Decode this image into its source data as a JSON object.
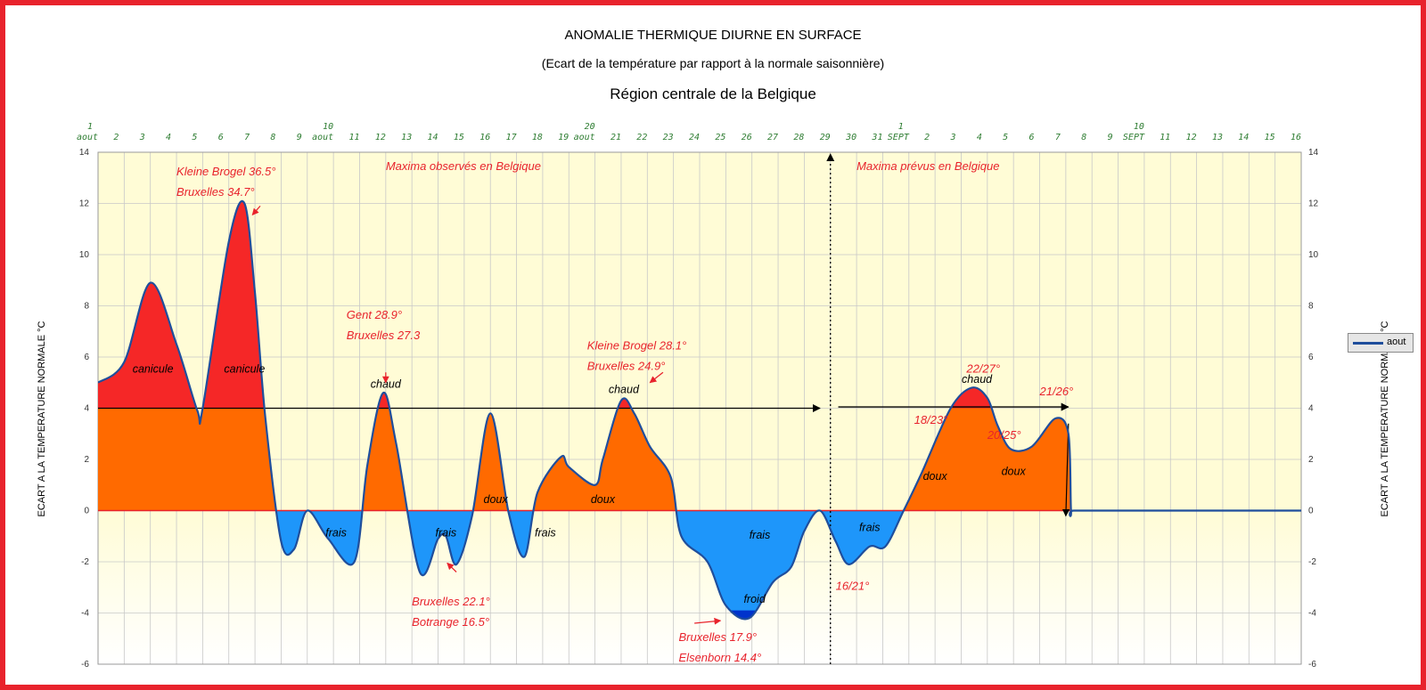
{
  "title": "ANOMALIE THERMIQUE DIURNE EN SURFACE",
  "subtitle": "(Ecart de la température par rapport à la normale saisonnière)",
  "region": "Région centrale de la Belgique",
  "colors": {
    "frame": "#e8232c",
    "background_positive": "#fffcd6",
    "background_negative": "#fffee6",
    "warm_fill": "#ff6a00",
    "heat_fill": "#f52727",
    "cool_fill": "#1e96fa",
    "cold_fill": "#0033cc",
    "curve": "#1f4e9c",
    "annotation": "#e8232c",
    "tick_label": "#2e7d32"
  },
  "chart_data": {
    "type": "area",
    "ylabel": "ECART A LA TEMPERATURE NORMALE °C",
    "ylabel_right": "ECART A LA TEMPERATURE NORMALE °C",
    "ylim": [
      -6,
      14
    ],
    "yticks": [
      -6,
      -4,
      -2,
      0,
      2,
      4,
      6,
      8,
      10,
      12,
      14
    ],
    "xlim": [
      1,
      47
    ],
    "grid": true,
    "legend_position": "right",
    "xtick_labels": [
      {
        "x": 1,
        "top": "1",
        "bottom": "aout"
      },
      {
        "x": 2,
        "bottom": "2"
      },
      {
        "x": 3,
        "bottom": "3"
      },
      {
        "x": 4,
        "bottom": "4"
      },
      {
        "x": 5,
        "bottom": "5"
      },
      {
        "x": 6,
        "bottom": "6"
      },
      {
        "x": 7,
        "bottom": "7"
      },
      {
        "x": 8,
        "bottom": "8"
      },
      {
        "x": 9,
        "bottom": "9"
      },
      {
        "x": 10,
        "top": "10",
        "bottom": "aout"
      },
      {
        "x": 11,
        "bottom": "11"
      },
      {
        "x": 12,
        "bottom": "12"
      },
      {
        "x": 13,
        "bottom": "13"
      },
      {
        "x": 14,
        "bottom": "14"
      },
      {
        "x": 15,
        "bottom": "15"
      },
      {
        "x": 16,
        "bottom": "16"
      },
      {
        "x": 17,
        "bottom": "17"
      },
      {
        "x": 18,
        "bottom": "18"
      },
      {
        "x": 19,
        "bottom": "19"
      },
      {
        "x": 20,
        "top": "20",
        "bottom": "aout"
      },
      {
        "x": 21,
        "bottom": "21"
      },
      {
        "x": 22,
        "bottom": "22"
      },
      {
        "x": 23,
        "bottom": "23"
      },
      {
        "x": 24,
        "bottom": "24"
      },
      {
        "x": 25,
        "bottom": "25"
      },
      {
        "x": 26,
        "bottom": "26"
      },
      {
        "x": 27,
        "bottom": "27"
      },
      {
        "x": 28,
        "bottom": "28"
      },
      {
        "x": 29,
        "bottom": "29"
      },
      {
        "x": 30,
        "bottom": "30"
      },
      {
        "x": 31,
        "bottom": "31"
      },
      {
        "x": 32,
        "top": "1",
        "bottom": "SEPT"
      },
      {
        "x": 33,
        "bottom": "2"
      },
      {
        "x": 34,
        "bottom": "3"
      },
      {
        "x": 35,
        "bottom": "4"
      },
      {
        "x": 36,
        "bottom": "5"
      },
      {
        "x": 37,
        "bottom": "6"
      },
      {
        "x": 38,
        "bottom": "7"
      },
      {
        "x": 39,
        "bottom": "8"
      },
      {
        "x": 40,
        "bottom": "9"
      },
      {
        "x": 41,
        "top": "10",
        "bottom": "SEPT"
      },
      {
        "x": 42,
        "bottom": "11"
      },
      {
        "x": 43,
        "bottom": "12"
      },
      {
        "x": 44,
        "bottom": "13"
      },
      {
        "x": 45,
        "bottom": "14"
      },
      {
        "x": 46,
        "bottom": "15"
      },
      {
        "x": 47,
        "bottom": "16"
      }
    ],
    "series": [
      {
        "name": "aout",
        "x": [
          1,
          2,
          3,
          4,
          4.8,
          5,
          6,
          6.6,
          7,
          7.4,
          8,
          8.5,
          9,
          9.8,
          10.8,
          11.3,
          11.9,
          12.4,
          13.3,
          14,
          14.3,
          14.7,
          15.3,
          16,
          16.7,
          17.3,
          17.8,
          18.7,
          19,
          20,
          20.3,
          21,
          21.5,
          22.1,
          22.9,
          23.3,
          24.3,
          25,
          25.9,
          26.8,
          27.5,
          28,
          28.6,
          29.2,
          29.7,
          30.5,
          31.1,
          31.8,
          32.5,
          33.6,
          34.4,
          35,
          35.4,
          35.9,
          36.7,
          37.6,
          38.1,
          38.2,
          38.3,
          40,
          47
        ],
        "values": [
          5.0,
          5.8,
          8.9,
          6.5,
          3.9,
          4.0,
          10.5,
          12.0,
          8.5,
          3.6,
          -1.2,
          -1.5,
          0.0,
          -1.1,
          -2.0,
          1.8,
          4.6,
          2.6,
          -2.4,
          -1.1,
          -1.0,
          -2.1,
          -0.2,
          3.8,
          -0.1,
          -1.8,
          0.7,
          2.1,
          1.7,
          1.0,
          2.0,
          4.3,
          3.8,
          2.5,
          1.3,
          -1.0,
          -2.0,
          -3.7,
          -4.2,
          -2.8,
          -2.2,
          -0.8,
          0.0,
          -1.2,
          -2.1,
          -1.4,
          -1.4,
          0.0,
          1.5,
          4.0,
          4.8,
          4.4,
          3.3,
          2.4,
          2.5,
          3.6,
          3.0,
          0.0,
          0.0,
          0.0,
          0.0
        ]
      },
      {
        "name": "normal_level_observed",
        "x": [
          1,
          28.6
        ],
        "values": [
          4.0,
          4.0
        ]
      },
      {
        "name": "normal_level_forecast",
        "x": [
          29.3,
          38.1
        ],
        "values": [
          4.05,
          4.05
        ]
      }
    ],
    "forecast_divider_x": 29,
    "annotations": [
      {
        "text": "Kleine Brogel 36.5°",
        "x": 4.0,
        "y": 13.1,
        "color": "red"
      },
      {
        "text": "Bruxelles 34.7°",
        "x": 4.0,
        "y": 12.3,
        "color": "red"
      },
      {
        "text": "Maxima observés en Belgique",
        "x": 12.0,
        "y": 13.3,
        "color": "red"
      },
      {
        "text": "Maxima prévus en Belgique",
        "x": 30.0,
        "y": 13.3,
        "color": "red"
      },
      {
        "text": "Gent 28.9°",
        "x": 10.5,
        "y": 7.5,
        "color": "red"
      },
      {
        "text": "Bruxelles 27.3",
        "x": 10.5,
        "y": 6.7,
        "color": "red"
      },
      {
        "text": "Kleine Brogel 28.1°",
        "x": 19.7,
        "y": 6.3,
        "color": "red"
      },
      {
        "text": "Bruxelles 24.9°",
        "x": 19.7,
        "y": 5.5,
        "color": "red"
      },
      {
        "text": "22/27°",
        "x": 34.2,
        "y": 5.4,
        "color": "red"
      },
      {
        "text": "21/26°",
        "x": 37.0,
        "y": 4.5,
        "color": "red"
      },
      {
        "text": "18/23°",
        "x": 32.2,
        "y": 3.4,
        "color": "red"
      },
      {
        "text": "20/25°",
        "x": 35.0,
        "y": 2.8,
        "color": "red"
      },
      {
        "text": "16/21°",
        "x": 29.2,
        "y": -3.1,
        "color": "red"
      },
      {
        "text": "Bruxelles 22.1°",
        "x": 13.0,
        "y": -3.7,
        "color": "red"
      },
      {
        "text": "Botrange 16.5°",
        "x": 13.0,
        "y": -4.5,
        "color": "red"
      },
      {
        "text": "Bruxelles 17.9°",
        "x": 23.2,
        "y": -5.1,
        "color": "red"
      },
      {
        "text": "Elsenborn 14.4°",
        "x": 23.2,
        "y": -5.9,
        "color": "red"
      },
      {
        "text": "canicule",
        "x": 3.1,
        "y": 5.4,
        "color": "black"
      },
      {
        "text": "canicule",
        "x": 6.6,
        "y": 5.4,
        "color": "black"
      },
      {
        "text": "chaud",
        "x": 12.0,
        "y": 4.8,
        "color": "black"
      },
      {
        "text": "chaud",
        "x": 21.1,
        "y": 4.6,
        "color": "black"
      },
      {
        "text": "chaud",
        "x": 34.6,
        "y": 5.0,
        "color": "black"
      },
      {
        "text": "doux",
        "x": 16.2,
        "y": 0.3,
        "color": "black"
      },
      {
        "text": "doux",
        "x": 20.3,
        "y": 0.3,
        "color": "black"
      },
      {
        "text": "doux",
        "x": 33.0,
        "y": 1.2,
        "color": "black"
      },
      {
        "text": "doux",
        "x": 36.0,
        "y": 1.4,
        "color": "black"
      },
      {
        "text": "frais",
        "x": 10.1,
        "y": -1.0,
        "color": "black"
      },
      {
        "text": "frais",
        "x": 14.3,
        "y": -1.0,
        "color": "black"
      },
      {
        "text": "frais",
        "x": 18.1,
        "y": -1.0,
        "color": "black"
      },
      {
        "text": "frais",
        "x": 26.3,
        "y": -1.1,
        "color": "black"
      },
      {
        "text": "frais",
        "x": 30.5,
        "y": -0.8,
        "color": "black"
      },
      {
        "text": "froid",
        "x": 26.1,
        "y": -3.6,
        "color": "black"
      }
    ]
  }
}
